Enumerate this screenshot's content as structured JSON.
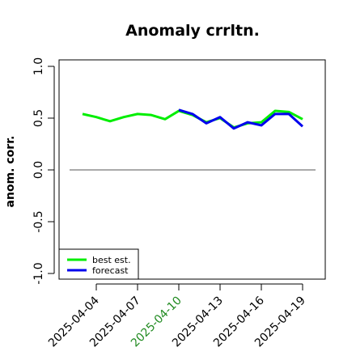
{
  "chart_data": {
    "type": "line",
    "title": "Anomaly crrltn.",
    "xlabel": "",
    "ylabel": "anom. corr.",
    "ylim": [
      -1.0,
      1.0
    ],
    "y_ticks": [
      "-1.0",
      "-0.5",
      "0.0",
      "0.5",
      "1.0"
    ],
    "x_tick_labels": [
      {
        "label": "2025-04-04",
        "color": "#000000"
      },
      {
        "label": "2025-04-07",
        "color": "#000000"
      },
      {
        "label": "2025-04-10",
        "color": "#228B22"
      },
      {
        "label": "2025-04-13",
        "color": "#000000"
      },
      {
        "label": "2025-04-16",
        "color": "#000000"
      },
      {
        "label": "2025-04-19",
        "color": "#000000"
      }
    ],
    "x": [
      "2025-04-03",
      "2025-04-04",
      "2025-04-05",
      "2025-04-06",
      "2025-04-07",
      "2025-04-08",
      "2025-04-09",
      "2025-04-10",
      "2025-04-11",
      "2025-04-12",
      "2025-04-13",
      "2025-04-14",
      "2025-04-15",
      "2025-04-16",
      "2025-04-17",
      "2025-04-18",
      "2025-04-19"
    ],
    "series": [
      {
        "name": "best est.",
        "color": "#00ee00",
        "values": [
          0.54,
          0.51,
          0.47,
          0.51,
          0.54,
          0.53,
          0.49,
          0.57,
          0.53,
          0.46,
          0.5,
          0.41,
          0.45,
          0.46,
          0.57,
          0.56,
          0.49
        ]
      },
      {
        "name": "forecast",
        "color": "#0000ee",
        "values": [
          null,
          null,
          null,
          null,
          null,
          null,
          null,
          0.58,
          0.54,
          0.45,
          0.51,
          0.4,
          0.46,
          0.43,
          0.54,
          0.54,
          0.42
        ]
      }
    ],
    "reference_line": 0.0,
    "legend_position": "bottom-left",
    "grid": false
  }
}
